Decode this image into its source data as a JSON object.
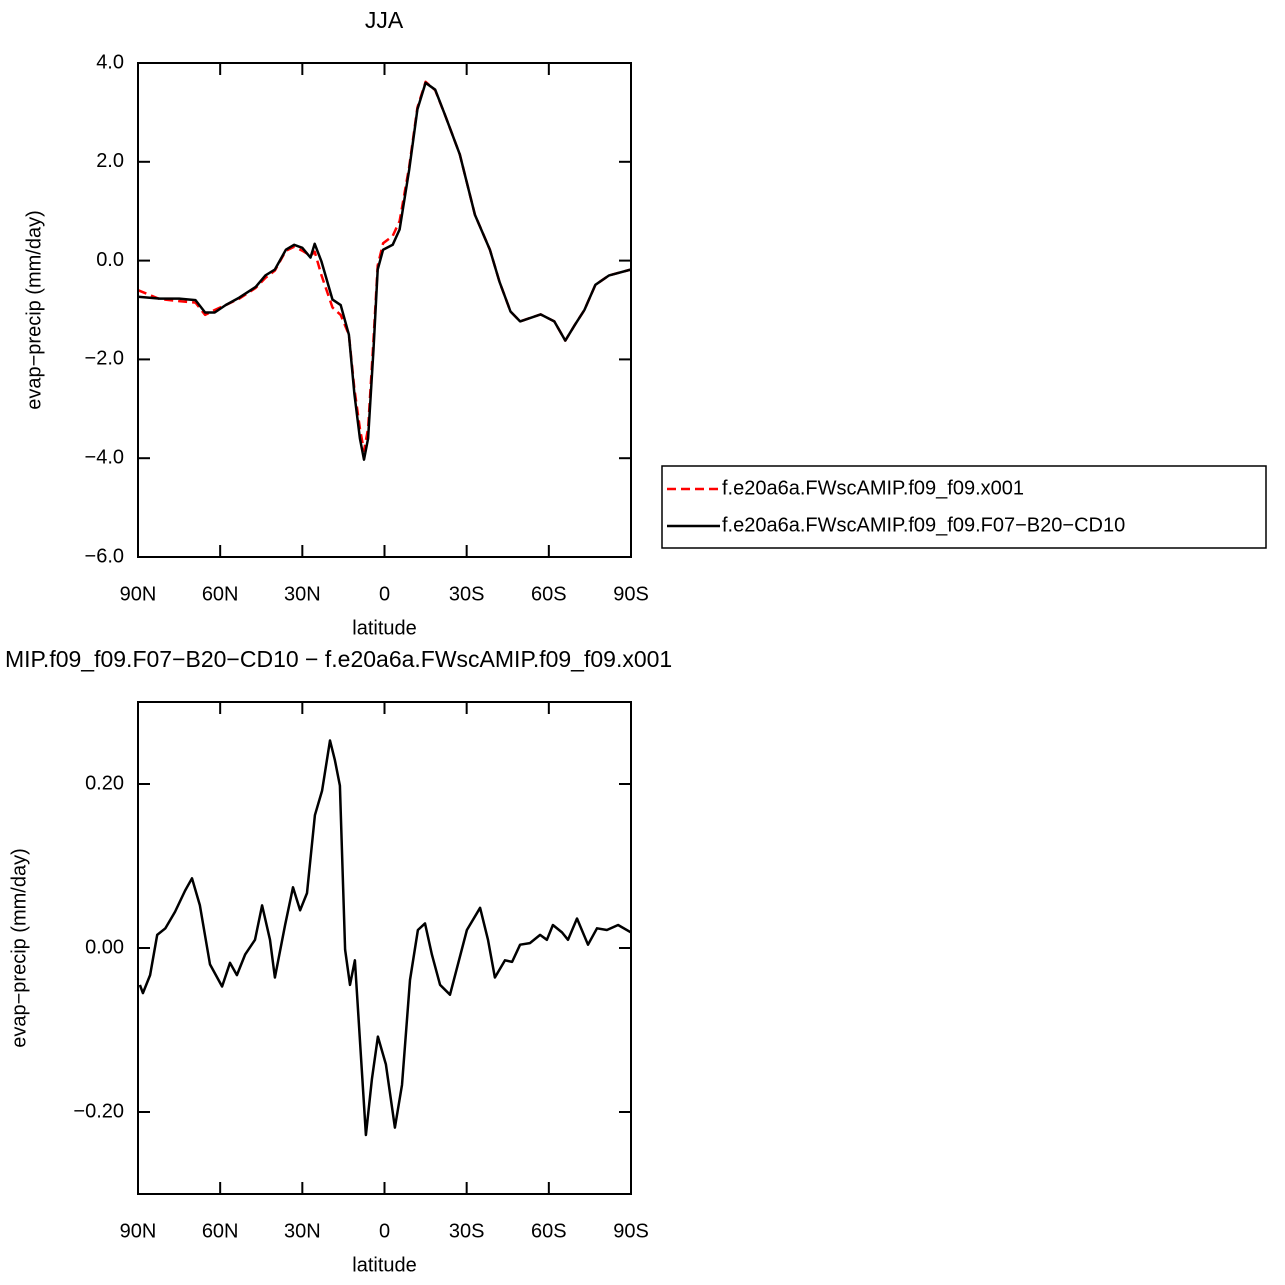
{
  "chart_data": [
    {
      "type": "line",
      "title": "JJA",
      "xlabel": "latitude",
      "ylabel": "evap−precip (mm/day)",
      "x": [
        90,
        82,
        75,
        69,
        65.5,
        62,
        58,
        53,
        47,
        43.5,
        40,
        36,
        33,
        30,
        27,
        25.5,
        23,
        19,
        16,
        13,
        11,
        9,
        7.5,
        6,
        4,
        2.5,
        0.5,
        -3,
        -5.5,
        -9,
        -12,
        -15,
        -18.5,
        -22,
        -27.5,
        -33,
        -38.5,
        -42,
        -46,
        -49.5,
        -57,
        -62,
        -66,
        -69.5,
        -73,
        -77,
        -82,
        -90
      ],
      "series": [
        {
          "name": "f.e20a6a.FWscAMIP.f09_f09.x001",
          "color": "#ff0000",
          "dash": "dashed",
          "values": [
            -0.6,
            -0.78,
            -0.82,
            -0.85,
            -1.1,
            -1.0,
            -0.9,
            -0.77,
            -0.55,
            -0.35,
            -0.2,
            0.2,
            0.28,
            0.2,
            0.1,
            0.18,
            -0.3,
            -0.95,
            -1.1,
            -1.5,
            -2.6,
            -3.4,
            -3.85,
            -3.4,
            -1.6,
            -0.1,
            0.35,
            0.5,
            0.8,
            1.9,
            3.1,
            3.62,
            3.45,
            2.96,
            2.15,
            0.93,
            0.22,
            -0.43,
            -1.03,
            -1.23,
            -1.09,
            -1.23,
            -1.62,
            -1.3,
            -1.0,
            -0.49,
            -0.3,
            -0.18
          ]
        },
        {
          "name": "f.e20a6a.FWscAMIP.f09_f09.F07−B20−CD10",
          "color": "#000000",
          "values": [
            -0.73,
            -0.77,
            -0.77,
            -0.8,
            -1.05,
            -1.05,
            -0.9,
            -0.75,
            -0.53,
            -0.3,
            -0.18,
            0.22,
            0.32,
            0.26,
            0.06,
            0.34,
            -0.02,
            -0.79,
            -0.9,
            -1.5,
            -2.7,
            -3.6,
            -4.03,
            -3.6,
            -1.8,
            -0.18,
            0.22,
            0.32,
            0.63,
            1.84,
            3.06,
            3.6,
            3.46,
            2.96,
            2.15,
            0.93,
            0.22,
            -0.43,
            -1.03,
            -1.23,
            -1.09,
            -1.23,
            -1.62,
            -1.3,
            -1.0,
            -0.49,
            -0.3,
            -0.18
          ]
        }
      ],
      "xlim": [
        90,
        -90
      ],
      "xticks": [
        {
          "value": 90,
          "label": "90N"
        },
        {
          "value": 60,
          "label": "60N"
        },
        {
          "value": 30,
          "label": "30N"
        },
        0,
        {
          "value": -30,
          "label": "30S"
        },
        {
          "value": -60,
          "label": "60S"
        },
        {
          "value": -90,
          "label": "90S"
        }
      ],
      "ylim": [
        -6,
        4
      ],
      "yticks": [
        {
          "value": 4,
          "label": "4.0"
        },
        {
          "value": 2,
          "label": "2.0"
        },
        {
          "value": 0,
          "label": "0.0"
        },
        {
          "value": -2,
          "label": "−2.0"
        },
        {
          "value": -4,
          "label": "−4.0"
        },
        {
          "value": -6,
          "label": "−6.0"
        }
      ],
      "legend": "right",
      "grid": false
    },
    {
      "type": "line",
      "title": "MIP.f09_f09.F07−B20−CD10 − f.e20a6a.FWscAMIP.f09_f09.x001",
      "xlabel": "latitude",
      "ylabel": "evap−precip (mm/day)",
      "x": [
        89.3,
        88.2,
        85.6,
        83,
        80,
        76.5,
        72.8,
        70.3,
        67.4,
        63.7,
        59.3,
        56.4,
        53.9,
        50.9,
        47.3,
        44.7,
        41.8,
        40,
        36.3,
        33.4,
        30.8,
        28.3,
        25.4,
        22.8,
        19.9,
        18.1,
        16.3,
        14.4,
        12.6,
        10.8,
        9,
        6.8,
        4.6,
        2.4,
        -0.5,
        -3.8,
        -6.4,
        -9.3,
        -12.2,
        -14.8,
        -17.3,
        -20.3,
        -23.9,
        -26.8,
        -30.1,
        -34.9,
        -37.8,
        -40.3,
        -44,
        -46.6,
        -49.5,
        -53.1,
        -56.8,
        -59.3,
        -61.5,
        -64.8,
        -67,
        -70.3,
        -74.3,
        -77.6,
        -81.2,
        -85.3,
        -90
      ],
      "values": [
        -0.045,
        -0.055,
        -0.033,
        0.016,
        0.024,
        0.044,
        0.07,
        0.085,
        0.052,
        -0.02,
        -0.047,
        -0.018,
        -0.033,
        -0.008,
        0.01,
        0.052,
        0.01,
        -0.036,
        0.028,
        0.074,
        0.046,
        0.067,
        0.162,
        0.192,
        0.253,
        0.229,
        0.198,
        -0.002,
        -0.045,
        -0.015,
        -0.112,
        -0.228,
        -0.16,
        -0.108,
        -0.142,
        -0.219,
        -0.167,
        -0.039,
        0.022,
        0.03,
        -0.008,
        -0.045,
        -0.057,
        -0.02,
        0.022,
        0.049,
        0.01,
        -0.036,
        -0.015,
        -0.017,
        0.004,
        0.006,
        0.016,
        0.01,
        0.028,
        0.019,
        0.01,
        0.036,
        0.004,
        0.024,
        0.022,
        0.028,
        0.019
      ],
      "color": "#000000",
      "xlim": [
        90,
        -90
      ],
      "xticks": [
        {
          "value": 90,
          "label": "90N"
        },
        {
          "value": 60,
          "label": "60N"
        },
        {
          "value": 30,
          "label": "30N"
        },
        0,
        {
          "value": -30,
          "label": "30S"
        },
        {
          "value": -60,
          "label": "60S"
        },
        {
          "value": -90,
          "label": "90S"
        }
      ],
      "ylim": [
        -0.3,
        0.3
      ],
      "yticks": [
        {
          "value": 0.2,
          "label": "0.20"
        },
        {
          "value": 0,
          "label": "0.00"
        },
        {
          "value": -0.2,
          "label": "−0.20"
        }
      ],
      "grid": false
    }
  ]
}
